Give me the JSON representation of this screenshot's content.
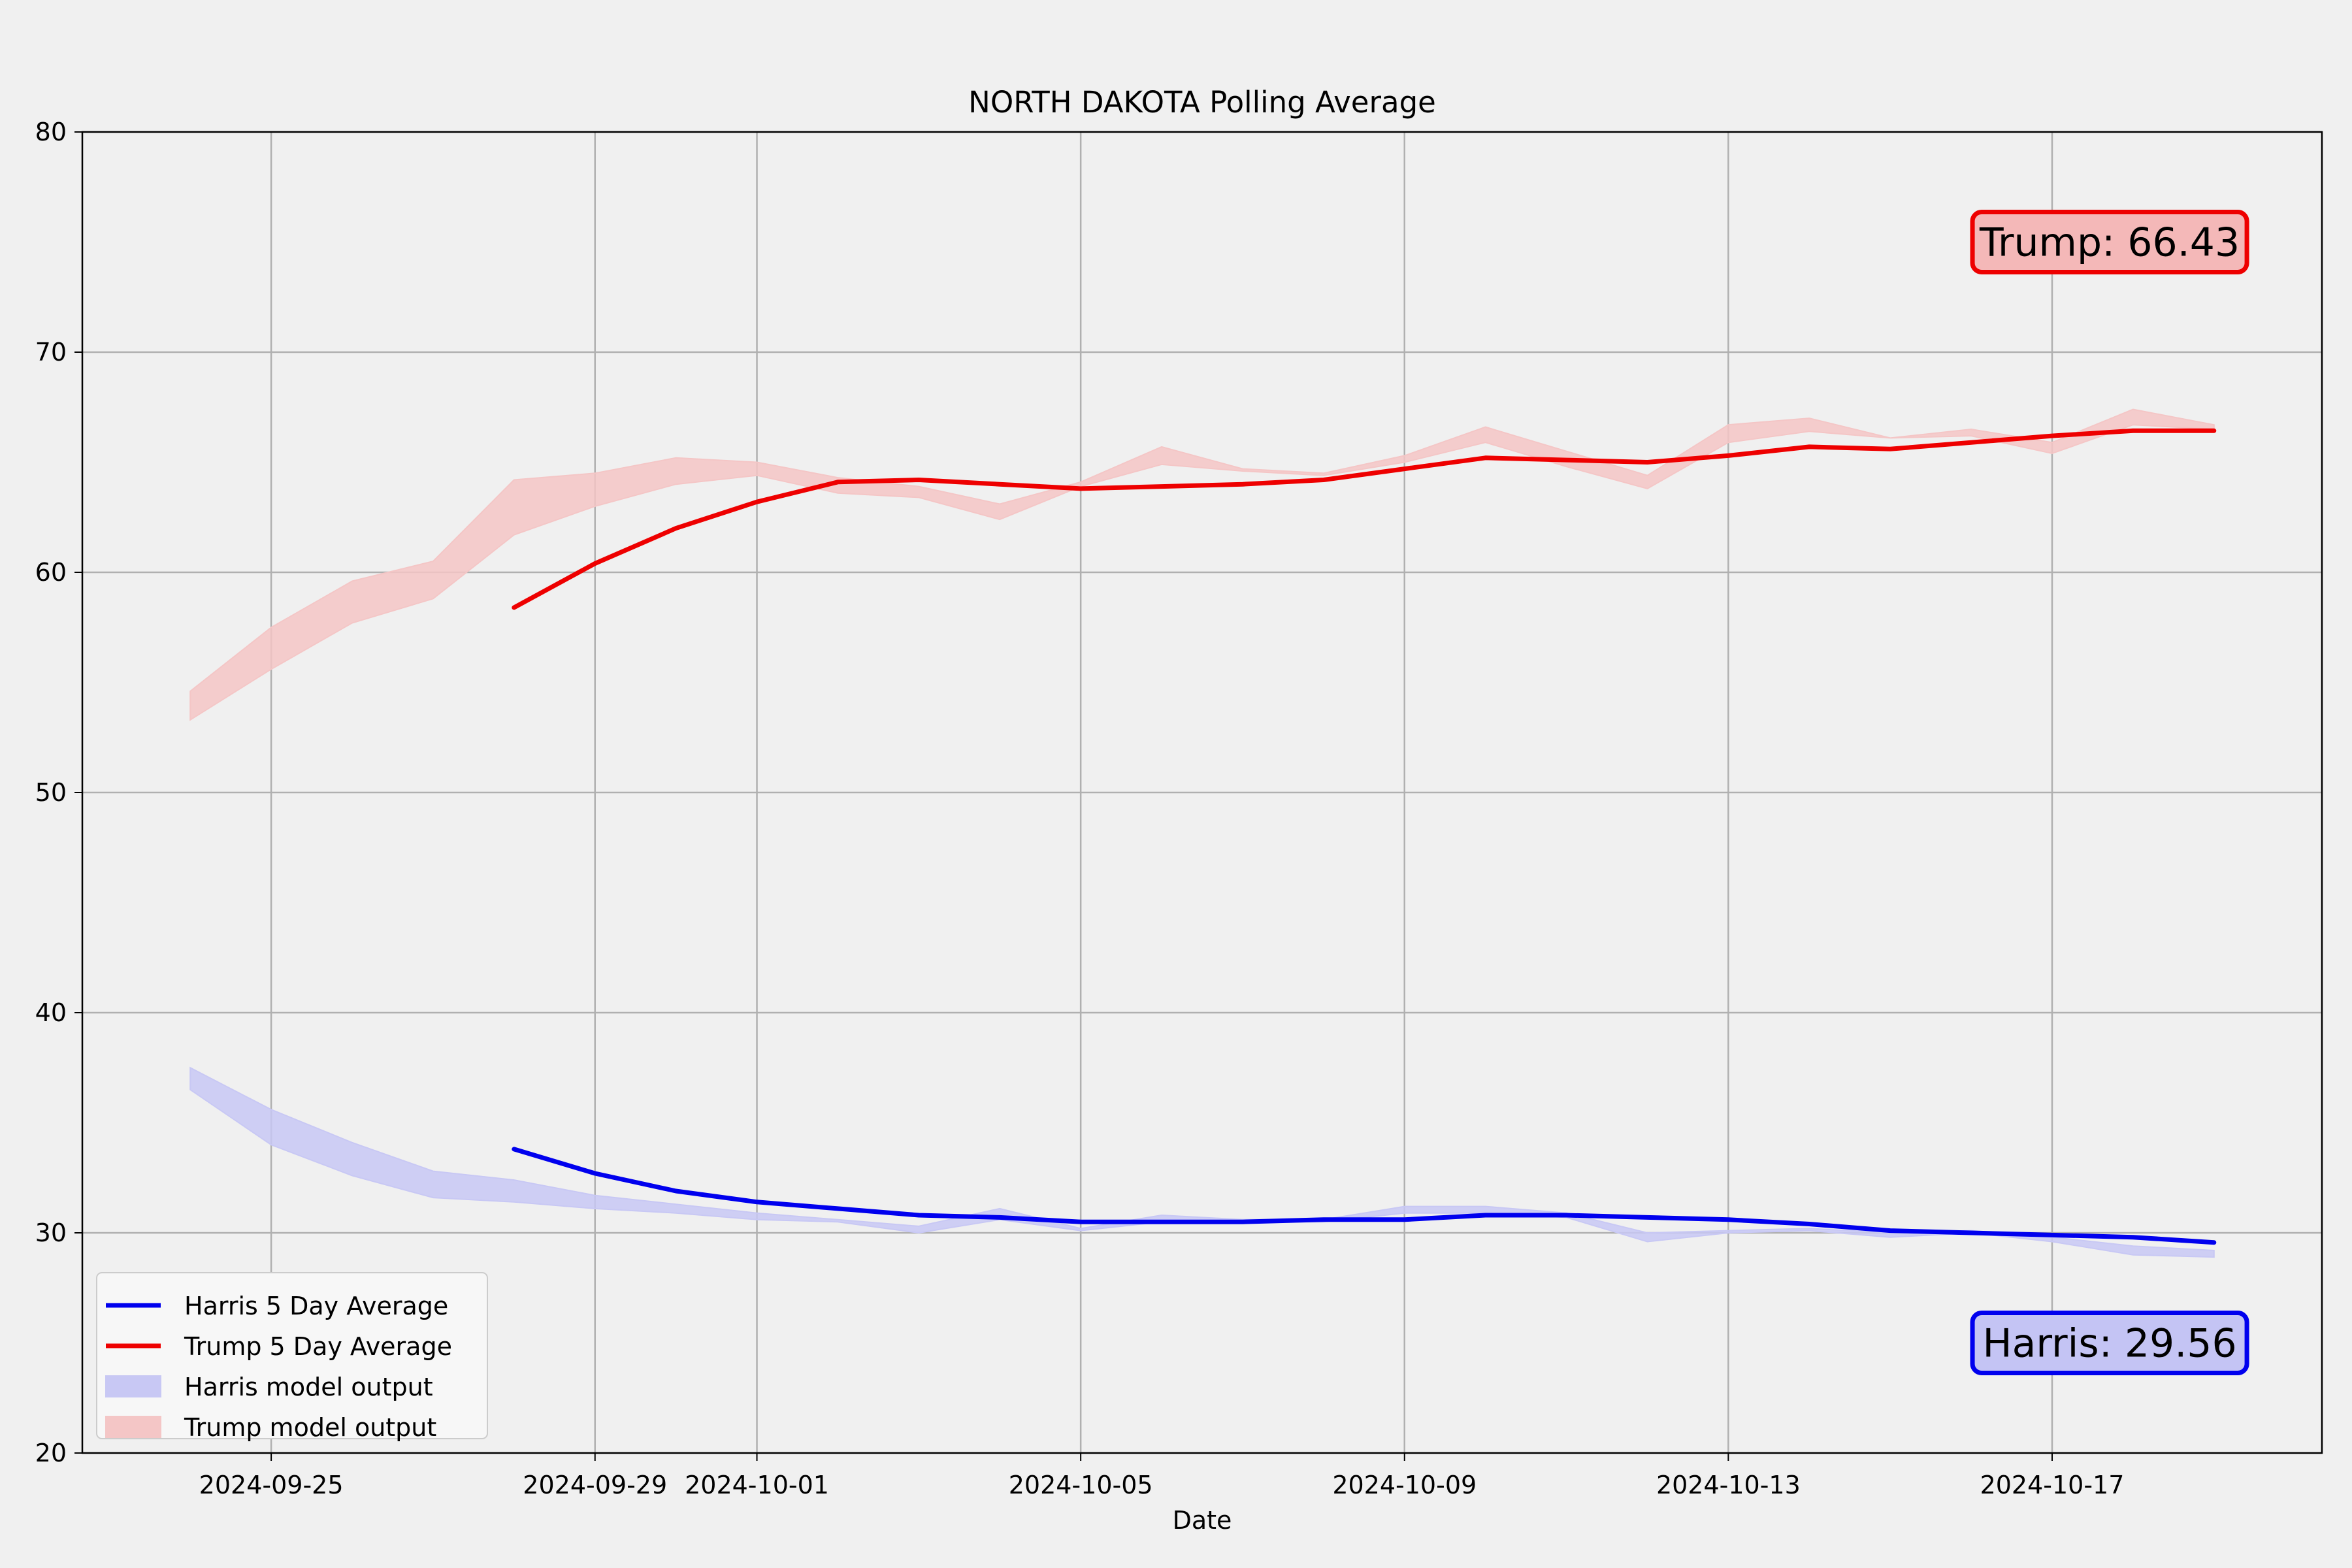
{
  "chart_data": {
    "type": "line",
    "title": "NORTH DAKOTA Polling Average",
    "xlabel": "Date",
    "ylabel": "",
    "ylim": [
      20,
      80
    ],
    "xlim": [
      "2024-09-22 16:00",
      "2024-10-20 08:00"
    ],
    "yticks": [
      20,
      30,
      40,
      50,
      60,
      70,
      80
    ],
    "xticks": [
      "2024-09-25",
      "2024-09-29",
      "2024-10-01",
      "2024-10-05",
      "2024-10-09",
      "2024-10-13",
      "2024-10-17"
    ],
    "grid": true,
    "legend_position": "lower left",
    "colors": {
      "harris": "#0000ee",
      "trump": "#ee0000",
      "harris_band": "#c8c8f4",
      "trump_band": "#f4c6c6",
      "background": "#f0f0f0"
    },
    "series": [
      {
        "name": "Harris 5 Day Average",
        "kind": "line",
        "x": [
          "2024-09-28",
          "2024-09-29",
          "2024-09-30",
          "2024-10-01",
          "2024-10-02",
          "2024-10-03",
          "2024-10-04",
          "2024-10-05",
          "2024-10-06",
          "2024-10-07",
          "2024-10-08",
          "2024-10-09",
          "2024-10-10",
          "2024-10-11",
          "2024-10-12",
          "2024-10-13",
          "2024-10-14",
          "2024-10-15",
          "2024-10-16",
          "2024-10-17",
          "2024-10-18",
          "2024-10-19"
        ],
        "values": [
          33.8,
          32.7,
          31.9,
          31.4,
          31.1,
          30.8,
          30.7,
          30.5,
          30.5,
          30.5,
          30.6,
          30.6,
          30.8,
          30.8,
          30.7,
          30.6,
          30.4,
          30.1,
          30.0,
          29.9,
          29.8,
          29.56
        ]
      },
      {
        "name": "Trump 5 Day Average",
        "kind": "line",
        "x": [
          "2024-09-28",
          "2024-09-29",
          "2024-09-30",
          "2024-10-01",
          "2024-10-02",
          "2024-10-03",
          "2024-10-04",
          "2024-10-05",
          "2024-10-06",
          "2024-10-07",
          "2024-10-08",
          "2024-10-09",
          "2024-10-10",
          "2024-10-11",
          "2024-10-12",
          "2024-10-13",
          "2024-10-14",
          "2024-10-15",
          "2024-10-16",
          "2024-10-17",
          "2024-10-18",
          "2024-10-19"
        ],
        "values": [
          58.4,
          60.4,
          62.0,
          63.2,
          64.1,
          64.2,
          64.0,
          63.8,
          63.9,
          64.0,
          64.2,
          64.7,
          65.2,
          65.1,
          65.0,
          65.3,
          65.7,
          65.6,
          65.9,
          66.2,
          66.43,
          66.43
        ]
      },
      {
        "name": "Harris model output",
        "kind": "band",
        "x": [
          "2024-09-24",
          "2024-09-25",
          "2024-09-26",
          "2024-09-27",
          "2024-09-28",
          "2024-09-29",
          "2024-09-30",
          "2024-10-01",
          "2024-10-02",
          "2024-10-03",
          "2024-10-04",
          "2024-10-05",
          "2024-10-06",
          "2024-10-07",
          "2024-10-08",
          "2024-10-09",
          "2024-10-10",
          "2024-10-11",
          "2024-10-12",
          "2024-10-13",
          "2024-10-14",
          "2024-10-15",
          "2024-10-16",
          "2024-10-17",
          "2024-10-18",
          "2024-10-19"
        ],
        "lower": [
          36.5,
          34.0,
          32.6,
          31.6,
          31.4,
          31.1,
          30.9,
          30.6,
          30.5,
          30.0,
          30.6,
          30.1,
          30.5,
          30.5,
          30.5,
          30.9,
          30.9,
          30.7,
          29.6,
          30.0,
          30.1,
          29.8,
          30.0,
          29.6,
          29.0,
          28.9
        ],
        "upper": [
          37.5,
          35.6,
          34.1,
          32.8,
          32.4,
          31.7,
          31.3,
          30.9,
          30.6,
          30.3,
          31.1,
          30.2,
          30.8,
          30.6,
          30.6,
          31.2,
          31.2,
          30.9,
          30.0,
          30.1,
          30.2,
          30.0,
          30.1,
          29.8,
          29.4,
          29.2
        ]
      },
      {
        "name": "Trump model output",
        "kind": "band",
        "x": [
          "2024-09-24",
          "2024-09-25",
          "2024-09-26",
          "2024-09-27",
          "2024-09-28",
          "2024-09-29",
          "2024-09-30",
          "2024-10-01",
          "2024-10-02",
          "2024-10-03",
          "2024-10-04",
          "2024-10-05",
          "2024-10-06",
          "2024-10-07",
          "2024-10-08",
          "2024-10-09",
          "2024-10-10",
          "2024-10-11",
          "2024-10-12",
          "2024-10-13",
          "2024-10-14",
          "2024-10-15",
          "2024-10-16",
          "2024-10-17",
          "2024-10-18",
          "2024-10-19"
        ],
        "lower": [
          53.3,
          55.6,
          57.7,
          58.8,
          61.7,
          63.0,
          64.0,
          64.4,
          63.6,
          63.4,
          62.4,
          63.9,
          64.9,
          64.6,
          64.4,
          65.0,
          65.9,
          64.8,
          63.8,
          65.9,
          66.4,
          66.1,
          66.2,
          65.4,
          66.7,
          66.5
        ],
        "upper": [
          54.6,
          57.5,
          59.6,
          60.5,
          64.2,
          64.5,
          65.2,
          65.0,
          64.3,
          63.9,
          63.1,
          64.1,
          65.7,
          64.7,
          64.5,
          65.3,
          66.6,
          65.5,
          64.4,
          66.7,
          67.0,
          66.1,
          66.5,
          65.9,
          67.4,
          66.7
        ]
      }
    ],
    "annotations": [
      {
        "id": "trump",
        "text": "Trump: 66.43",
        "x": "2024-10-16",
        "y": 75
      },
      {
        "id": "harris",
        "text": "Harris: 29.56",
        "x": "2024-10-16",
        "y": 25
      }
    ]
  }
}
